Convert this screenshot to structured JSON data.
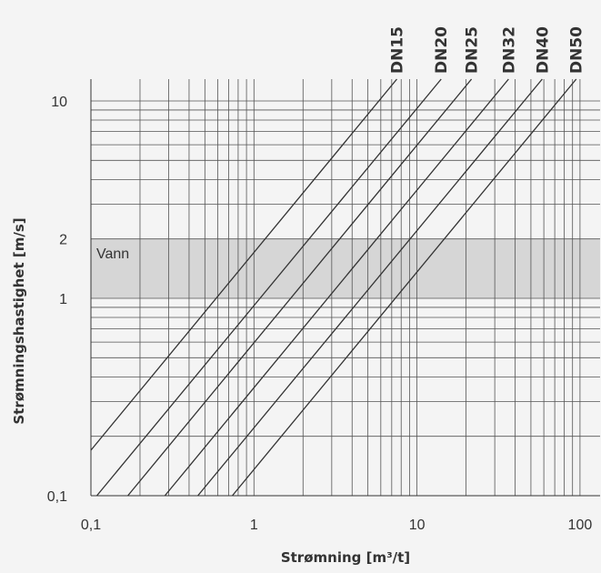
{
  "chart_data": {
    "type": "line",
    "title": "",
    "xlabel": "Strømning [m³/t]",
    "ylabel": "Strømningshastighet [m/s]",
    "x_scale": "log",
    "y_scale": "log",
    "xlim": [
      0.1,
      110
    ],
    "ylim": [
      0.1,
      11
    ],
    "x_ticks": [
      {
        "value": 0.1,
        "label": "0,1"
      },
      {
        "value": 1,
        "label": "1"
      },
      {
        "value": 10,
        "label": "10"
      },
      {
        "value": 100,
        "label": "100"
      }
    ],
    "y_ticks": [
      {
        "value": 0.1,
        "label": "0,1"
      },
      {
        "value": 1,
        "label": "1"
      },
      {
        "value": 2,
        "label": "2"
      },
      {
        "value": 10,
        "label": "10"
      }
    ],
    "grid": true,
    "band": {
      "label": "Vann",
      "y_range": [
        1,
        2
      ],
      "color": "#d6d6d6"
    },
    "series": [
      {
        "name": "DN15",
        "x": [
          0.1,
          7.7
        ],
        "y": [
          0.17,
          13.2
        ]
      },
      {
        "name": "DN20",
        "x": [
          0.1,
          14.4
        ],
        "y": [
          0.092,
          13.2
        ]
      },
      {
        "name": "DN25",
        "x": [
          0.16,
          22.1
        ],
        "y": [
          0.095,
          13.2
        ]
      },
      {
        "name": "DN32",
        "x": [
          0.27,
          37.3
        ],
        "y": [
          0.095,
          13.2
        ]
      },
      {
        "name": "DN40",
        "x": [
          0.43,
          60
        ],
        "y": [
          0.095,
          13.2
        ]
      },
      {
        "name": "DN50",
        "x": [
          0.7,
          97
        ],
        "y": [
          0.095,
          13.2
        ]
      }
    ],
    "colors": {
      "line": "#333333",
      "grid": "#555555",
      "text": "#333333",
      "background": "#f4f4f4"
    }
  }
}
